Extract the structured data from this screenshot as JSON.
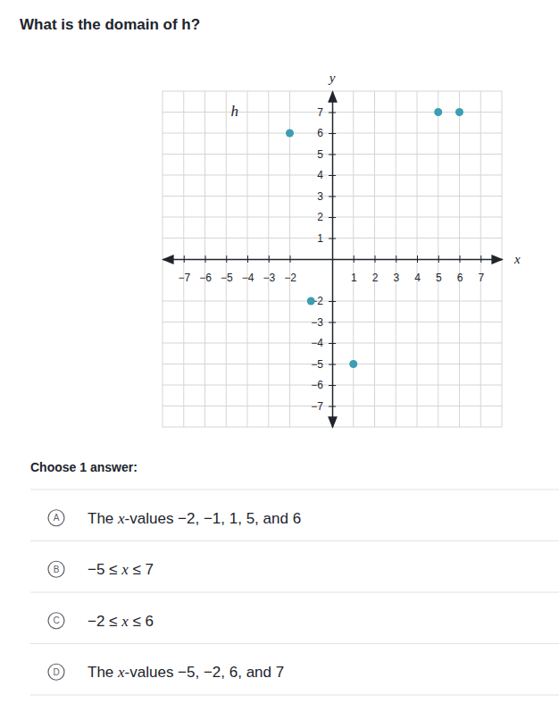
{
  "question": "What is the domain of h?",
  "chart_data": {
    "type": "scatter",
    "x": [
      -2,
      -1,
      1,
      5,
      6
    ],
    "values": [
      6,
      -2,
      -5,
      7,
      7
    ],
    "color": "#3d9db3",
    "marker": "circle",
    "xlim": [
      -8,
      8
    ],
    "ylim": [
      -8,
      8
    ],
    "xticks": [
      -7,
      -6,
      -5,
      -4,
      -3,
      -2,
      1,
      2,
      3,
      4,
      5,
      6,
      7
    ],
    "yticks": [
      -7,
      -6,
      -5,
      -4,
      -3,
      -2,
      1,
      2,
      3,
      4,
      5,
      6,
      7
    ],
    "grid": true,
    "x_label": "x",
    "y_label": "y",
    "annotations": [
      {
        "text": "h",
        "x": -4.6,
        "y": 6.8
      }
    ]
  },
  "prompt": "Choose 1 answer:",
  "choices": [
    {
      "letter": "A",
      "text": "The x-values −2, −1, 1, 5, and 6"
    },
    {
      "letter": "B",
      "text": "−5 ≤ x ≤ 7"
    },
    {
      "letter": "C",
      "text": "−2 ≤ x ≤ 6"
    },
    {
      "letter": "D",
      "text": "The x-values −5, −2, 6, and 7"
    }
  ]
}
